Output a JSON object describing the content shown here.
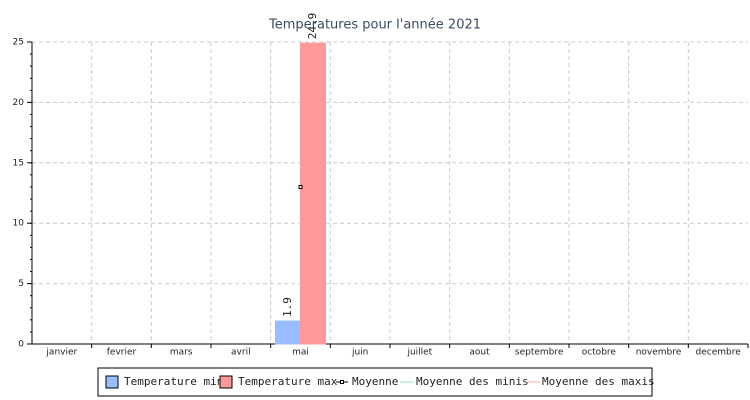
{
  "chart_data": {
    "type": "bar",
    "title": "Temperatures pour l'année 2021",
    "categories": [
      "janvier",
      "fevrier",
      "mars",
      "avril",
      "mai",
      "juin",
      "juillet",
      "aout",
      "septembre",
      "octobre",
      "novembre",
      "decembre"
    ],
    "series": [
      {
        "name": "Temperature min",
        "type": "bar",
        "color": "#99bbff",
        "values": [
          null,
          null,
          null,
          null,
          1.9,
          null,
          null,
          null,
          null,
          null,
          null,
          null
        ]
      },
      {
        "name": "Temperature max",
        "type": "bar",
        "color": "#ff9999",
        "values": [
          null,
          null,
          null,
          null,
          24.9,
          null,
          null,
          null,
          null,
          null,
          null,
          null
        ]
      },
      {
        "name": "Moyenne",
        "type": "point",
        "color": "#000000",
        "values": [
          null,
          null,
          null,
          null,
          13,
          null,
          null,
          null,
          null,
          null,
          null,
          null
        ]
      },
      {
        "name": "Moyenne des minis",
        "type": "line",
        "color": "#99ddcc",
        "values": [
          null,
          null,
          null,
          null,
          1.9,
          null,
          null,
          null,
          null,
          null,
          null,
          null
        ]
      },
      {
        "name": "Moyenne des maxis",
        "type": "line",
        "color": "#ffaaaa",
        "values": [
          null,
          null,
          null,
          null,
          24.9,
          null,
          null,
          null,
          null,
          null,
          null,
          null
        ]
      }
    ],
    "ylim": [
      0,
      25
    ],
    "yticks": [
      0,
      5,
      10,
      15,
      20,
      25
    ],
    "grid": true
  }
}
